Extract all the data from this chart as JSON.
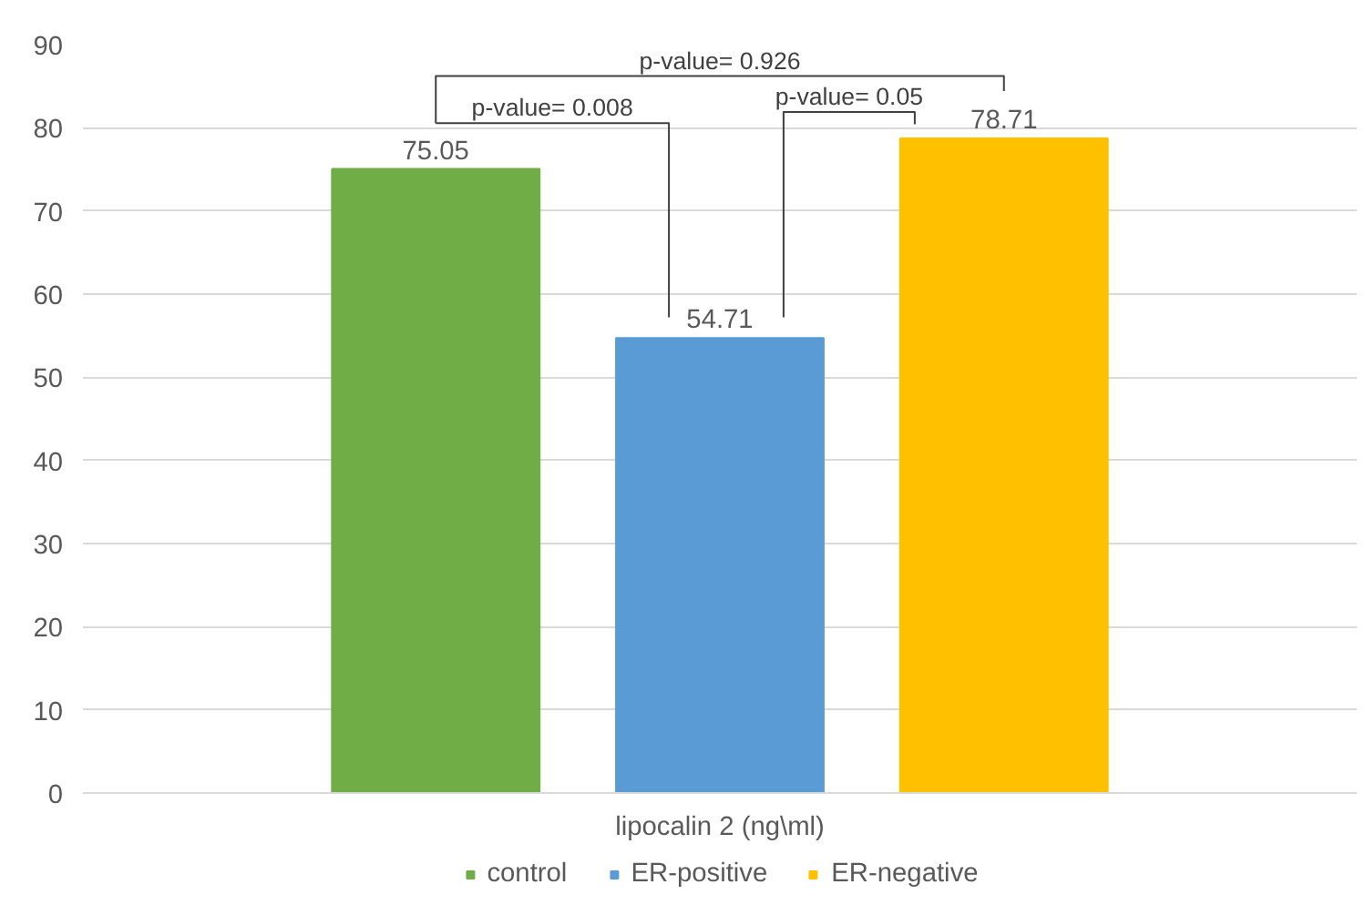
{
  "chart_data": {
    "type": "bar",
    "categories": [
      "lipocalin 2 (ng\\ml)"
    ],
    "series": [
      {
        "name": "control",
        "color": "#70ad47",
        "values": [
          75.05
        ]
      },
      {
        "name": "ER-positive",
        "color": "#5b9bd5",
        "values": [
          54.71
        ]
      },
      {
        "name": "ER-negative",
        "color": "#ffc000",
        "values": [
          78.71
        ]
      }
    ],
    "ylim": [
      0,
      90
    ],
    "yticks": [
      0,
      10,
      20,
      30,
      40,
      50,
      60,
      70,
      80,
      90
    ],
    "grid": "y",
    "legend": "bottom",
    "data_labels": true,
    "annotations": [
      "p-value= 0.926",
      "p-value= 0.008",
      "p-value= 0.05"
    ]
  }
}
